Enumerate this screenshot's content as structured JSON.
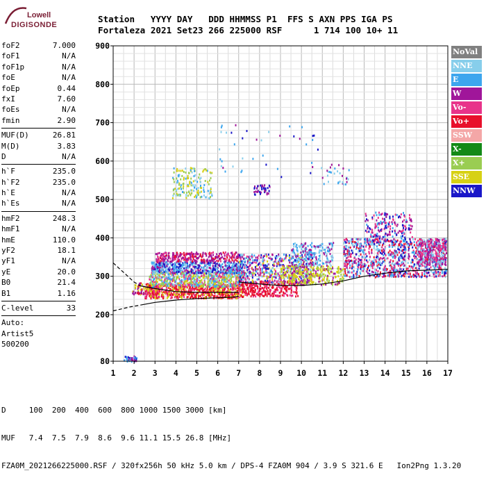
{
  "logo": {
    "line1": "Lowell",
    "line2": "DIGISONDE"
  },
  "header": {
    "labels_line": "Station   YYYY DAY   DDD HHMMSS P1  FFS S AXN PPS IGA PS",
    "values_line": "Fortaleza 2021 Set23 266 225000 RSF      1 714 100 10+ 11"
  },
  "parameters": {
    "group1": [
      {
        "name": "foF2",
        "value": "7.000"
      },
      {
        "name": "foF1",
        "value": "N/A"
      },
      {
        "name": "foF1p",
        "value": "N/A"
      },
      {
        "name": "foE",
        "value": "N/A"
      },
      {
        "name": "foEp",
        "value": "0.44"
      },
      {
        "name": "fxI",
        "value": "7.60"
      },
      {
        "name": "foEs",
        "value": "N/A"
      },
      {
        "name": "fmin",
        "value": "2.90"
      }
    ],
    "group2": [
      {
        "name": "MUF(D)",
        "value": "26.81"
      },
      {
        "name": "M(D)",
        "value": "3.83"
      },
      {
        "name": "D",
        "value": "N/A"
      }
    ],
    "group3": [
      {
        "name": "h`F",
        "value": "235.0"
      },
      {
        "name": "h`F2",
        "value": "235.0"
      },
      {
        "name": "h`E",
        "value": "N/A"
      },
      {
        "name": "h`Es",
        "value": "N/A"
      }
    ],
    "group4": [
      {
        "name": "hmF2",
        "value": "248.3"
      },
      {
        "name": "hmF1",
        "value": "N/A"
      },
      {
        "name": "hmE",
        "value": "110.0"
      },
      {
        "name": "yF2",
        "value": "18.1"
      },
      {
        "name": "yF1",
        "value": "N/A"
      },
      {
        "name": "yE",
        "value": "20.0"
      },
      {
        "name": "B0",
        "value": "21.4"
      },
      {
        "name": "B1",
        "value": "1.16"
      }
    ],
    "group5": [
      {
        "name": "C-level",
        "value": "33"
      }
    ],
    "auto": [
      "Auto:",
      "Artist5",
      "500200"
    ]
  },
  "legend": [
    {
      "label": "NoVal",
      "color": "#808080"
    },
    {
      "label": "NNE",
      "color": "#87ceeb"
    },
    {
      "label": "E",
      "color": "#3da6ee"
    },
    {
      "label": "W",
      "color": "#a0169a"
    },
    {
      "label": "Vo-",
      "color": "#e8338a"
    },
    {
      "label": "Vo+",
      "color": "#e8102c"
    },
    {
      "label": "SSW",
      "color": "#f4a7a7"
    },
    {
      "label": "X-",
      "color": "#138a17"
    },
    {
      "label": "X+",
      "color": "#9acd52"
    },
    {
      "label": "SSE",
      "color": "#d7d114"
    },
    {
      "label": "NNW",
      "color": "#1a17c8"
    }
  ],
  "footer": {
    "d_line": "D     100  200  400  600  800 1000 1500 3000 [km]",
    "muf_line": "MUF   7.4  7.5  7.9  8.6  9.6 11.1 15.5 26.8 [MHz]",
    "info_line": "FZA0M_2021266225000.RSF / 320fx256h 50 kHz 5.0 km / DPS-4 FZA0M 904 / 3.9 S 321.6 E   Ion2Png 1.3.20"
  },
  "chart_data": {
    "type": "scatter",
    "x_ticks": [
      "1",
      "2",
      "3",
      "4",
      "5",
      "6",
      "7",
      "8",
      "9",
      "10",
      "11",
      "12",
      "13",
      "14",
      "15",
      "16",
      "17"
    ],
    "y_ticks": [
      "80",
      "200",
      "300",
      "400",
      "500",
      "600",
      "700",
      "800",
      "900"
    ],
    "xlim": [
      1,
      17
    ],
    "ylim": [
      80,
      900
    ],
    "grid": true,
    "legend_position": "right",
    "clusters": [
      {
        "f": [
          1.5,
          2.1
        ],
        "h": [
          80,
          95
        ],
        "colors": [
          "#1a17c8",
          "#a0169a",
          "#3da6ee"
        ],
        "n": 40
      },
      {
        "f": [
          1.9,
          3.0
        ],
        "h": [
          255,
          285
        ],
        "colors": [
          "#e8102c",
          "#d7d114",
          "#a0169a"
        ],
        "n": 80
      },
      {
        "f": [
          2.5,
          7.2
        ],
        "h": [
          245,
          280
        ],
        "colors": [
          "#e8102c",
          "#e8338a",
          "#e8102c",
          "#d7d114"
        ],
        "n": 700
      },
      {
        "f": [
          2.7,
          7.2
        ],
        "h": [
          275,
          315
        ],
        "colors": [
          "#d7d114",
          "#9acd52",
          "#3da6ee",
          "#87ceeb",
          "#e8338a"
        ],
        "n": 700
      },
      {
        "f": [
          2.8,
          7.2
        ],
        "h": [
          310,
          340
        ],
        "colors": [
          "#3da6ee",
          "#a0169a",
          "#87ceeb",
          "#1a17c8"
        ],
        "n": 550
      },
      {
        "f": [
          3.0,
          7.0
        ],
        "h": [
          340,
          365
        ],
        "colors": [
          "#a0169a",
          "#a0169a",
          "#e8338a",
          "#e8102c"
        ],
        "n": 300
      },
      {
        "f": [
          7.0,
          9.8
        ],
        "h": [
          250,
          290
        ],
        "colors": [
          "#e8102c",
          "#e8338a",
          "#e8102c"
        ],
        "n": 300
      },
      {
        "f": [
          7.0,
          10.5
        ],
        "h": [
          285,
          360
        ],
        "colors": [
          "#3da6ee",
          "#87ceeb",
          "#d7d114",
          "#a0169a",
          "#1a17c8",
          "#e8338a"
        ],
        "n": 550
      },
      {
        "f": [
          9.0,
          12.0
        ],
        "h": [
          280,
          330
        ],
        "colors": [
          "#d7d114",
          "#d7d114",
          "#9acd52",
          "#a0169a"
        ],
        "n": 320
      },
      {
        "f": [
          9.5,
          11.5
        ],
        "h": [
          330,
          390
        ],
        "colors": [
          "#3da6ee",
          "#87ceeb",
          "#a0169a"
        ],
        "n": 200
      },
      {
        "f": [
          12.0,
          16.9
        ],
        "h": [
          300,
          400
        ],
        "colors": [
          "#e8102c",
          "#e8338a",
          "#a0169a",
          "#87ceeb",
          "#3da6ee",
          "#1a17c8"
        ],
        "n": 1000
      },
      {
        "f": [
          13.0,
          15.3
        ],
        "h": [
          390,
          470
        ],
        "colors": [
          "#a0169a",
          "#1a17c8",
          "#e8338a",
          "#3da6ee"
        ],
        "n": 200
      },
      {
        "f": [
          15.5,
          16.9
        ],
        "h": [
          330,
          400
        ],
        "colors": [
          "#a0169a",
          "#e8338a",
          "#87ceeb"
        ],
        "n": 300
      },
      {
        "f": [
          3.8,
          5.7
        ],
        "h": [
          505,
          585
        ],
        "colors": [
          "#d7d114",
          "#3da6ee",
          "#87ceeb",
          "#9acd52"
        ],
        "n": 160
      },
      {
        "f": [
          7.7,
          8.5
        ],
        "h": [
          515,
          540
        ],
        "colors": [
          "#1a17c8",
          "#a0169a"
        ],
        "n": 40
      },
      {
        "f": [
          10.8,
          12.3
        ],
        "h": [
          540,
          595
        ],
        "colors": [
          "#3da6ee",
          "#87ceeb",
          "#a0169a"
        ],
        "n": 30
      },
      {
        "f": [
          6.0,
          10.8
        ],
        "h": [
          560,
          700
        ],
        "colors": [
          "#3da6ee",
          "#87ceeb",
          "#a0169a",
          "#1a17c8"
        ],
        "n": 40
      }
    ],
    "fit_curves": [
      {
        "name": "upper",
        "style": "dashed",
        "f": [
          1.0,
          1.3,
          1.7,
          2.0,
          2.3
        ],
        "h": [
          335,
          320,
          300,
          285,
          275
        ]
      },
      {
        "name": "lower",
        "style": "dashed",
        "f": [
          1.0,
          1.4,
          1.8,
          2.3
        ],
        "h": [
          210,
          215,
          220,
          225
        ]
      },
      {
        "name": "profile",
        "style": "solid",
        "f": [
          2.3,
          3.0,
          4.0,
          5.0,
          6.0,
          6.8,
          7.0
        ],
        "h": [
          225,
          232,
          238,
          242,
          244,
          246,
          248
        ]
      },
      {
        "name": "profile2",
        "style": "solid",
        "f": [
          2.3,
          3.0,
          4.0,
          5.0,
          6.0,
          7.0
        ],
        "h": [
          275,
          268,
          260,
          258,
          258,
          258
        ]
      },
      {
        "name": "trace",
        "style": "solid",
        "f": [
          7.0,
          8.0,
          9.0,
          10.0,
          11.0,
          12.0,
          13.0,
          14.0,
          15.0,
          16.0,
          17.0
        ],
        "h": [
          285,
          280,
          276,
          276,
          280,
          288,
          300,
          308,
          314,
          316,
          318
        ]
      }
    ]
  }
}
